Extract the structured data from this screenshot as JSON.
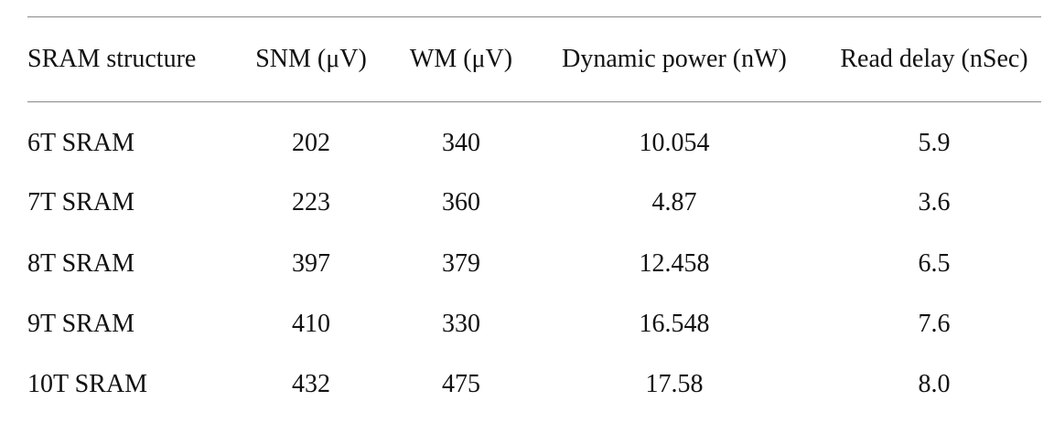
{
  "table": {
    "columns": [
      "SRAM structure",
      "SNM (μV)",
      "WM (μV)",
      "Dynamic power (nW)",
      "Read delay (nSec)"
    ],
    "rows": [
      [
        "6T SRAM",
        "202",
        "340",
        "10.054",
        "5.9"
      ],
      [
        "7T SRAM",
        "223",
        "360",
        "4.87",
        "3.6"
      ],
      [
        "8T SRAM",
        "397",
        "379",
        "12.458",
        "6.5"
      ],
      [
        "9T SRAM",
        "410",
        "330",
        "16.548",
        "7.6"
      ],
      [
        "10T SRAM",
        "432",
        "475",
        "17.58",
        "8.0"
      ]
    ]
  }
}
